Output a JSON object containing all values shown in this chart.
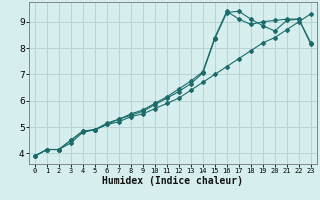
{
  "title": "",
  "xlabel": "Humidex (Indice chaleur)",
  "background_color": "#d6efee",
  "grid_color": "#b8d4d4",
  "line_color": "#1a6b6b",
  "xlim": [
    -0.5,
    23.5
  ],
  "ylim": [
    3.6,
    9.75
  ],
  "xticks": [
    0,
    1,
    2,
    3,
    4,
    5,
    6,
    7,
    8,
    9,
    10,
    11,
    12,
    13,
    14,
    15,
    16,
    17,
    18,
    19,
    20,
    21,
    22,
    23
  ],
  "yticks": [
    4,
    5,
    6,
    7,
    8,
    9
  ],
  "line1_x": [
    0,
    1,
    2,
    3,
    4,
    5,
    6,
    7,
    8,
    9,
    10,
    11,
    12,
    13,
    14,
    15,
    16,
    17,
    18,
    19,
    20,
    21,
    22,
    23
  ],
  "line1_y": [
    3.9,
    4.15,
    4.15,
    4.4,
    4.8,
    4.9,
    5.1,
    5.2,
    5.4,
    5.5,
    5.7,
    5.9,
    6.1,
    6.4,
    6.7,
    7.0,
    7.3,
    7.6,
    7.9,
    8.2,
    8.4,
    8.7,
    9.0,
    9.3
  ],
  "line2_x": [
    0,
    1,
    2,
    3,
    4,
    5,
    6,
    7,
    8,
    9,
    10,
    11,
    12,
    13,
    14,
    15,
    16,
    17,
    18,
    19,
    20,
    21,
    22,
    23
  ],
  "line2_y": [
    3.9,
    4.15,
    4.15,
    4.5,
    4.85,
    4.9,
    5.1,
    5.3,
    5.45,
    5.6,
    5.85,
    6.1,
    6.35,
    6.65,
    7.05,
    8.35,
    9.35,
    9.4,
    9.1,
    8.85,
    8.65,
    9.05,
    9.1,
    8.15
  ],
  "line3_x": [
    0,
    1,
    2,
    3,
    4,
    5,
    6,
    7,
    8,
    9,
    10,
    11,
    12,
    13,
    14,
    15,
    16,
    17,
    18,
    19,
    20,
    21,
    22,
    23
  ],
  "line3_y": [
    3.9,
    4.15,
    4.15,
    4.5,
    4.85,
    4.9,
    5.15,
    5.3,
    5.5,
    5.65,
    5.9,
    6.15,
    6.45,
    6.75,
    7.1,
    8.4,
    9.4,
    9.1,
    8.9,
    9.0,
    9.05,
    9.1,
    9.1,
    8.2
  ]
}
